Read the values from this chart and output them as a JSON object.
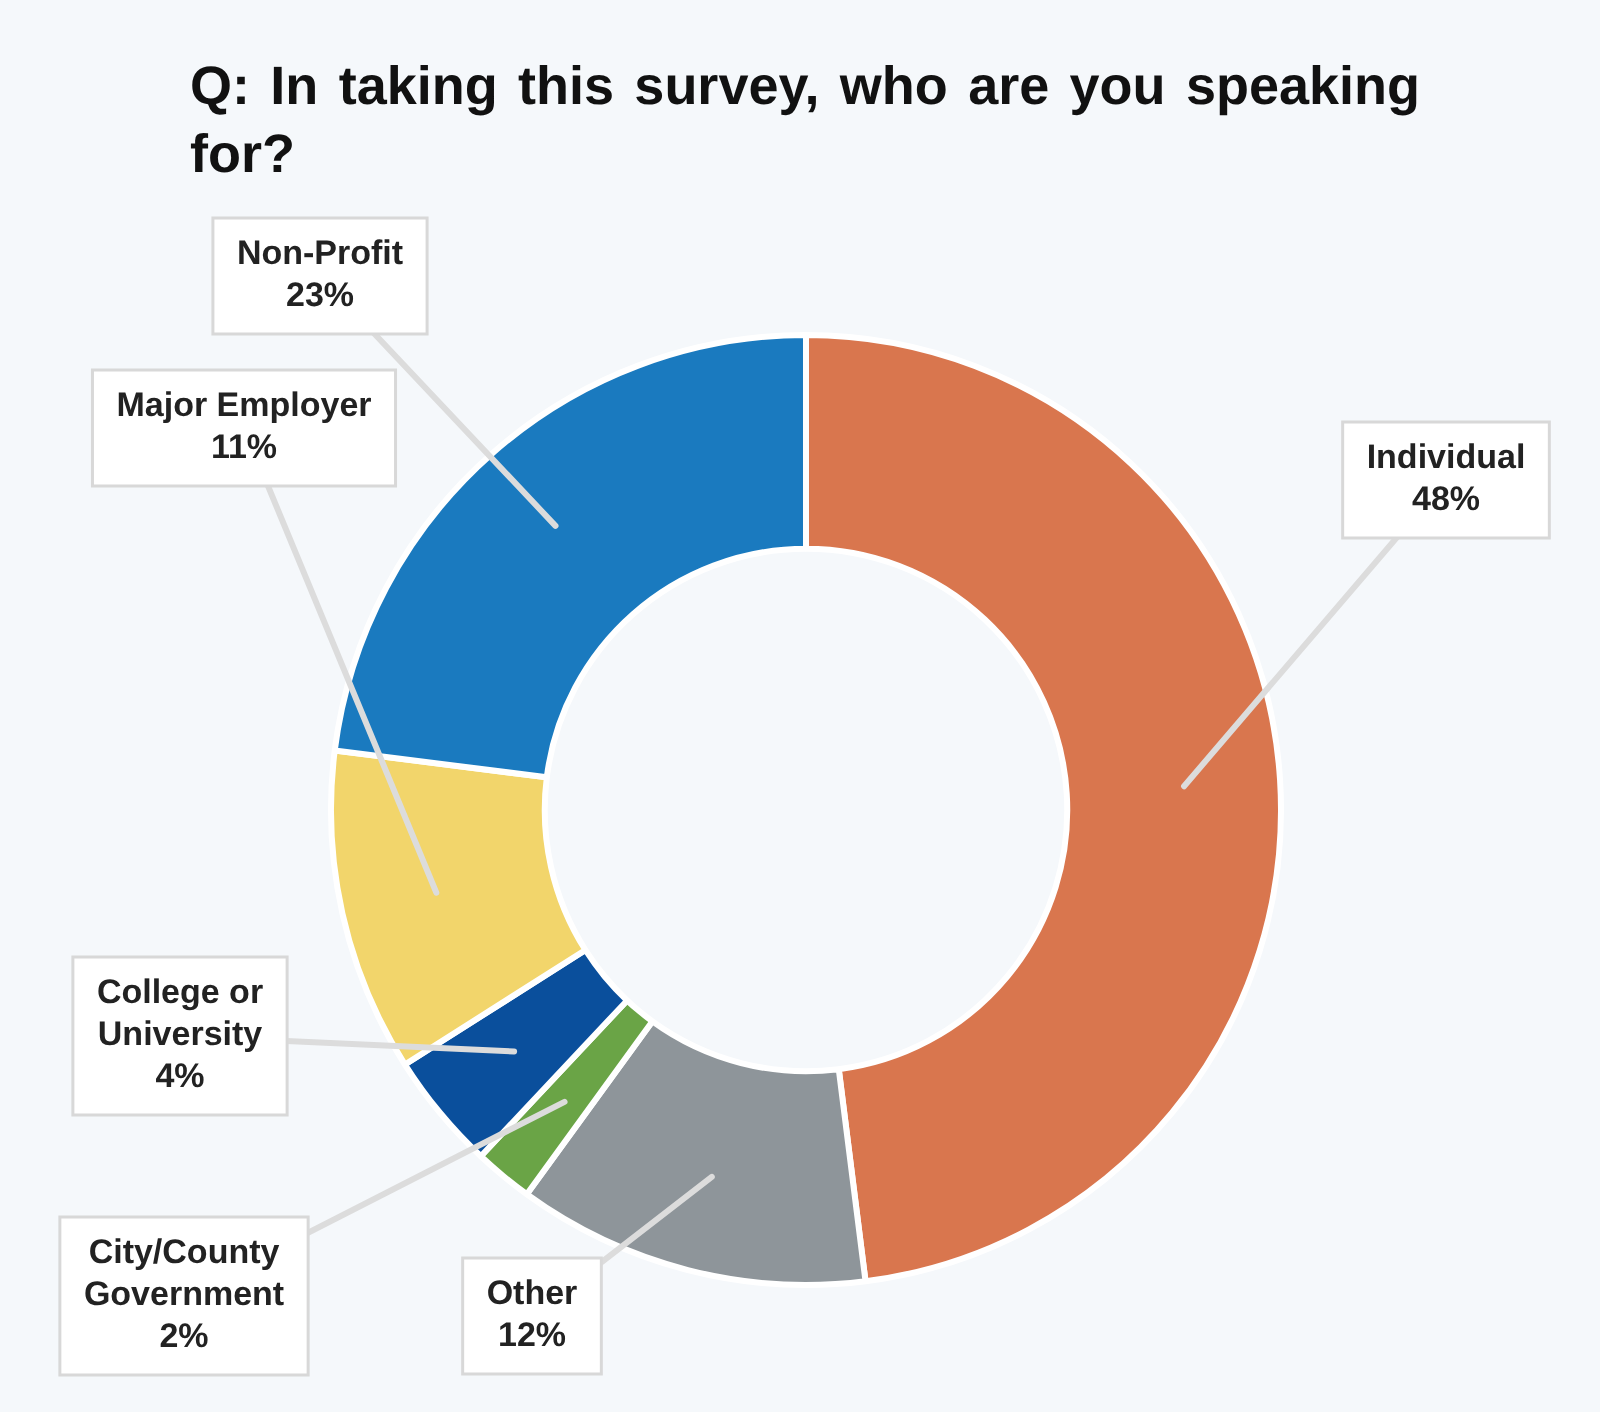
{
  "chart_data": {
    "type": "donut",
    "title": "Q: In taking this survey, who are you speaking for?",
    "categories": [
      "Individual",
      "Other",
      "City/County Government",
      "College or University",
      "Major Employer",
      "Non-Profit"
    ],
    "values": [
      48,
      12,
      2,
      4,
      11,
      23
    ],
    "value_labels": [
      "48%",
      "12%",
      "2%",
      "4%",
      "11%",
      "23%"
    ],
    "colors": [
      "#d9764e",
      "#8e959a",
      "#6aa446",
      "#0a4f9c",
      "#f2d56b",
      "#1a7abf"
    ],
    "legend": false
  }
}
